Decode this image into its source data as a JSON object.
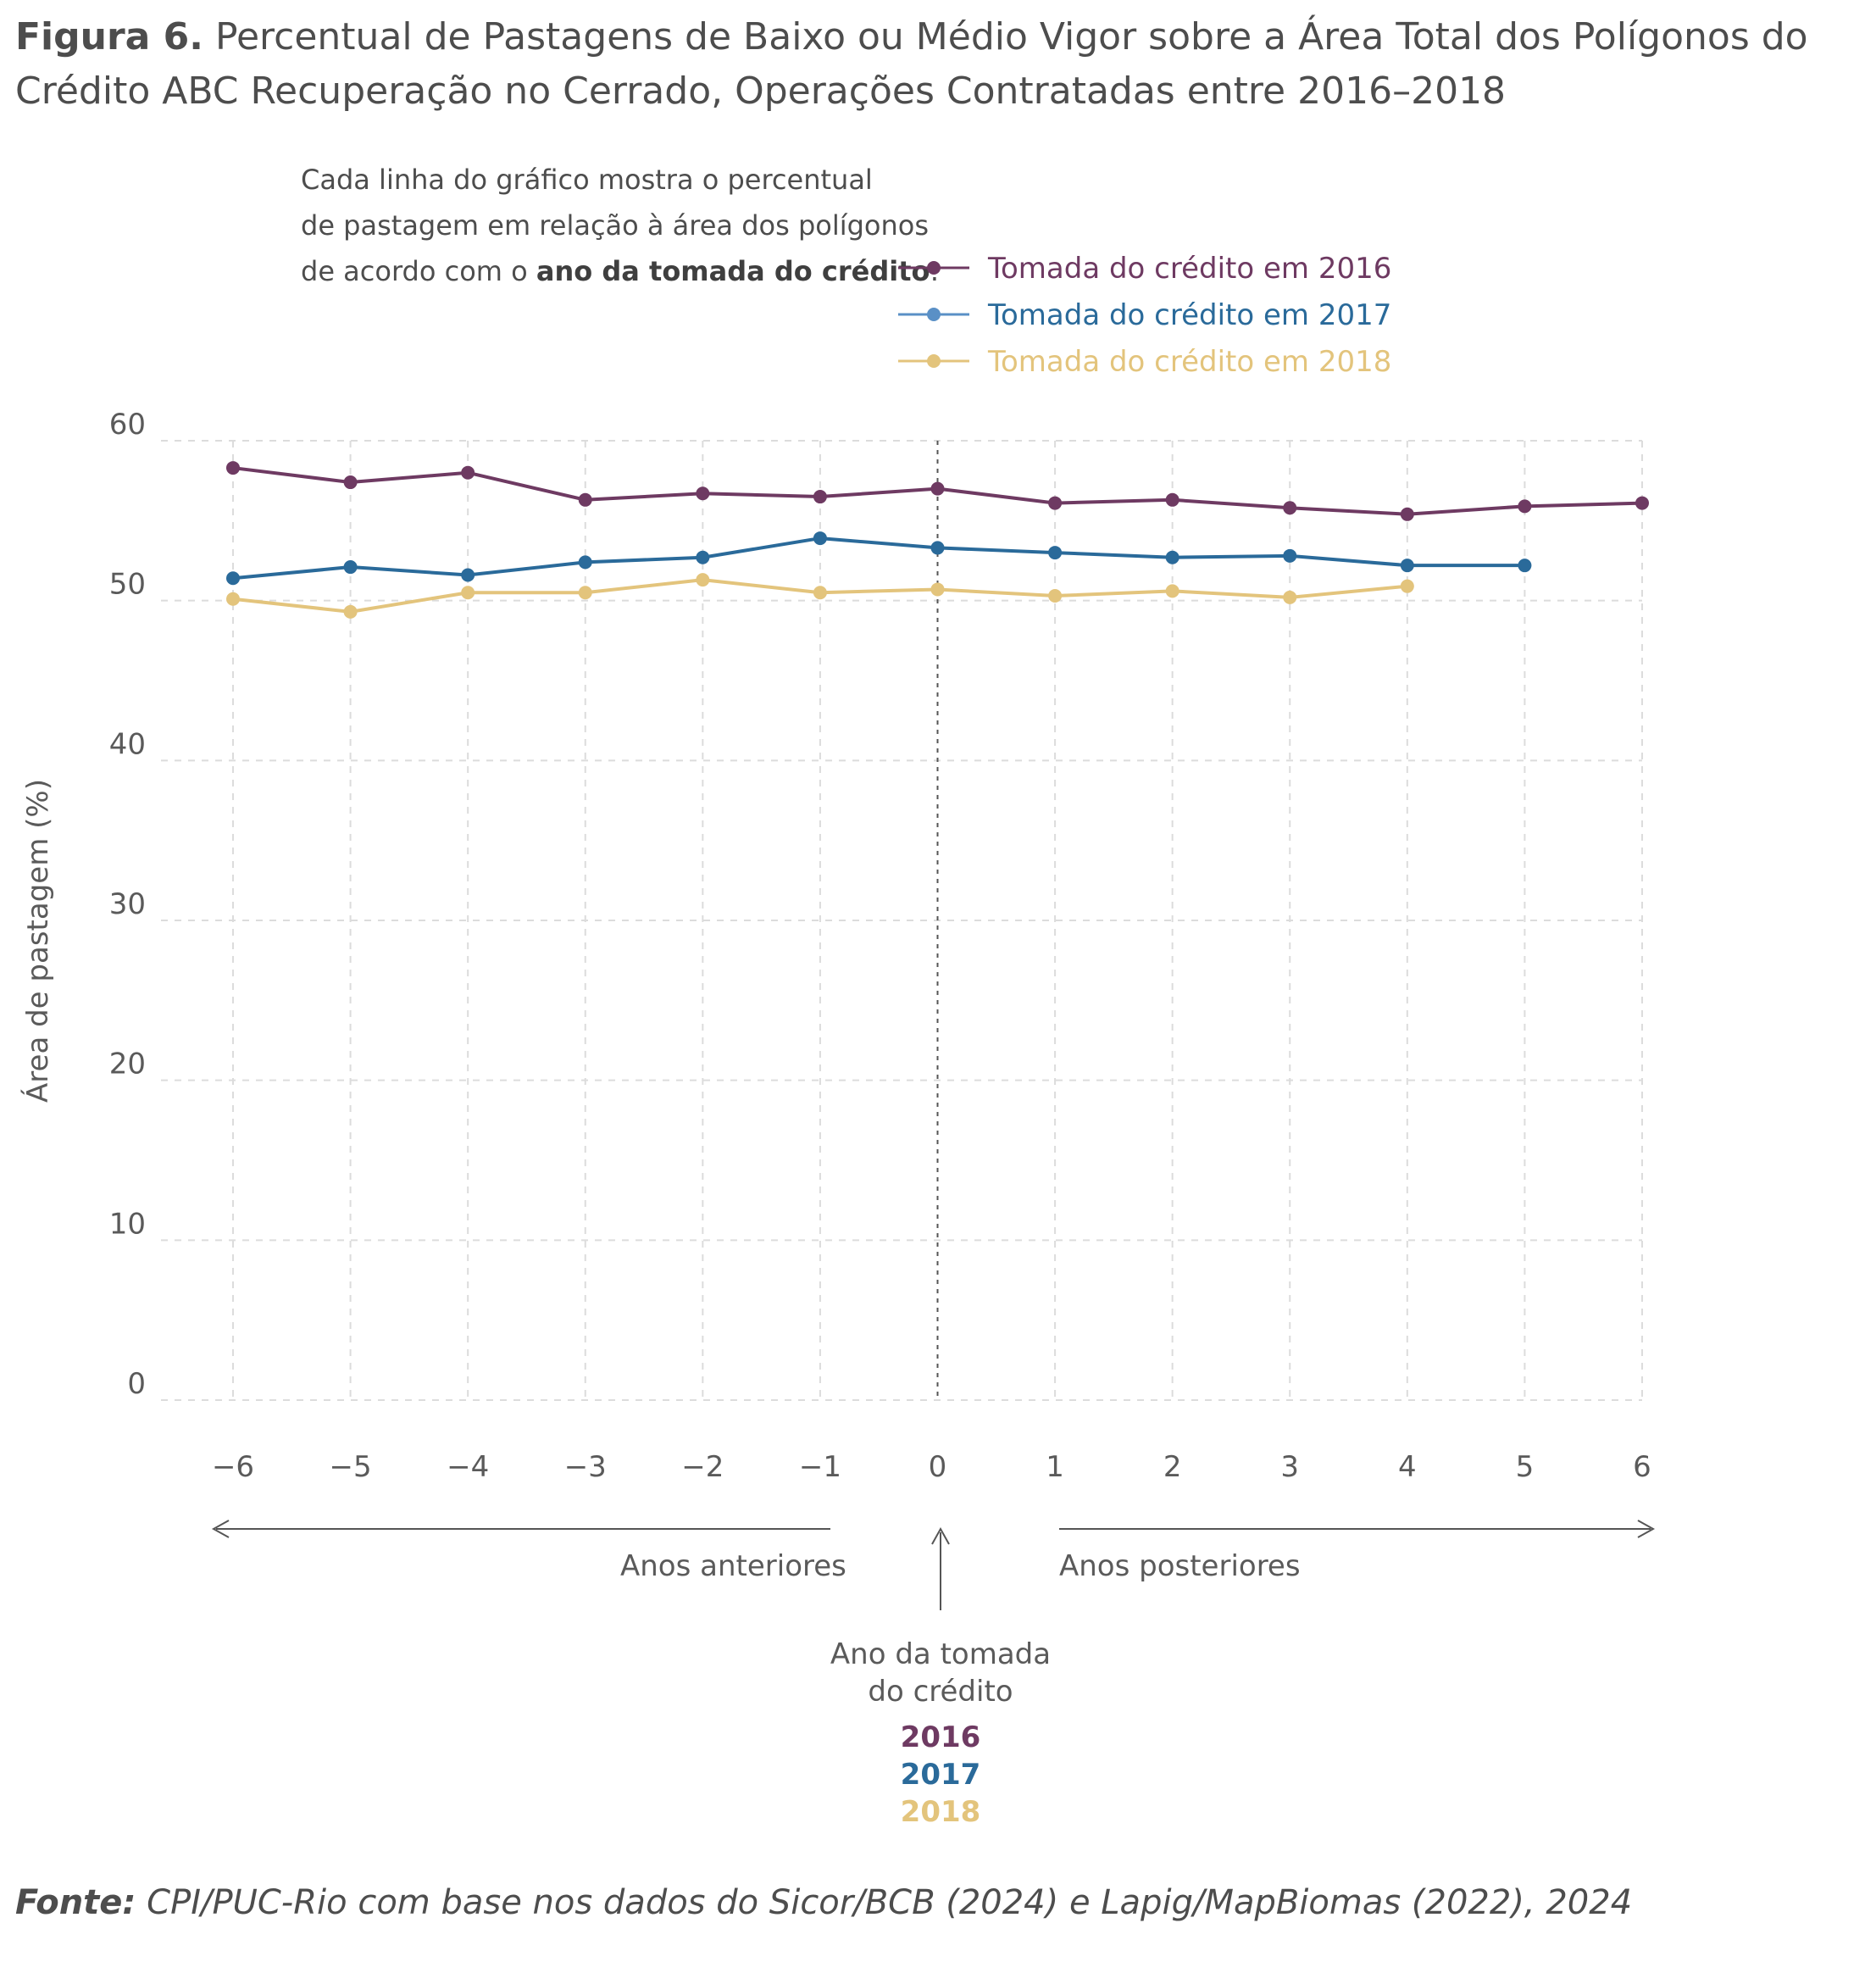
{
  "title": {
    "prefix": "Figura 6.",
    "text": "Percentual de Pastagens de Baixo ou Médio Vigor sobre a Área Total dos Polígonos do Crédito ABC Recuperação no Cerrado, Operações Contratadas entre 2016–2018"
  },
  "note": {
    "line1": "Cada linha do gráfico mostra o percentual",
    "line2": "de pastagem em relação à área dos polígonos",
    "line3_prefix": "de acordo com o ",
    "line3_bold": "ano da tomada do crédito",
    "line3_suffix": ":"
  },
  "colors": {
    "s2016": "#6e3a62",
    "s2017": "#2a6a9a",
    "s2018": "#e3c47c",
    "legend_2017_dot": "#5a90c6",
    "grid": "#dcdcdc",
    "axis_text": "#5a5a5a"
  },
  "chart_data": {
    "type": "line",
    "ylabel": "Área de pastagem (%)",
    "ylim": [
      0,
      60
    ],
    "yticks": [
      "0",
      "10",
      "20",
      "30",
      "40",
      "50",
      "60"
    ],
    "xlim": [
      -6,
      6
    ],
    "xticks": [
      "−6",
      "−5",
      "−4",
      "−3",
      "−2",
      "−1",
      "0",
      "1",
      "2",
      "3",
      "4",
      "5",
      "6"
    ],
    "x": [
      -6,
      -5,
      -4,
      -3,
      -2,
      -1,
      0,
      1,
      2,
      3,
      4,
      5,
      6
    ],
    "grid": true,
    "legend_position": "top-right",
    "reference_line_x": 0,
    "series": [
      {
        "name": "Tomada do crédito em 2016",
        "color_key": "s2016",
        "x": [
          -6,
          -5,
          -4,
          -3,
          -2,
          -1,
          0,
          1,
          2,
          3,
          4,
          5,
          6
        ],
        "values": [
          58.3,
          57.4,
          58.0,
          56.3,
          56.7,
          56.5,
          57.0,
          56.1,
          56.3,
          55.8,
          55.4,
          55.9,
          56.1
        ]
      },
      {
        "name": "Tomada do crédito em 2017",
        "color_key": "s2017",
        "x": [
          -6,
          -5,
          -4,
          -3,
          -2,
          -1,
          0,
          1,
          2,
          3,
          4,
          5
        ],
        "values": [
          51.4,
          52.1,
          51.6,
          52.4,
          52.7,
          53.9,
          53.3,
          53.0,
          52.7,
          52.8,
          52.2,
          52.2
        ]
      },
      {
        "name": "Tomada do crédito em 2018",
        "color_key": "s2018",
        "x": [
          -6,
          -5,
          -4,
          -3,
          -2,
          -1,
          0,
          1,
          2,
          3,
          4
        ],
        "values": [
          50.1,
          49.3,
          50.5,
          50.5,
          51.3,
          50.5,
          50.7,
          50.3,
          50.6,
          50.2,
          50.9
        ]
      }
    ]
  },
  "bottom": {
    "anos_anteriores": "Anos anteriores",
    "anos_posteriores": "Anos posteriores",
    "ano_tomada_line1": "Ano da tomada",
    "ano_tomada_line2": "do crédito",
    "years": [
      "2016",
      "2017",
      "2018"
    ]
  },
  "source": {
    "prefix": "Fonte:",
    "text": "CPI/PUC-Rio com base nos dados do Sicor/BCB (2024) e Lapig/MapBiomas (2022), 2024"
  }
}
